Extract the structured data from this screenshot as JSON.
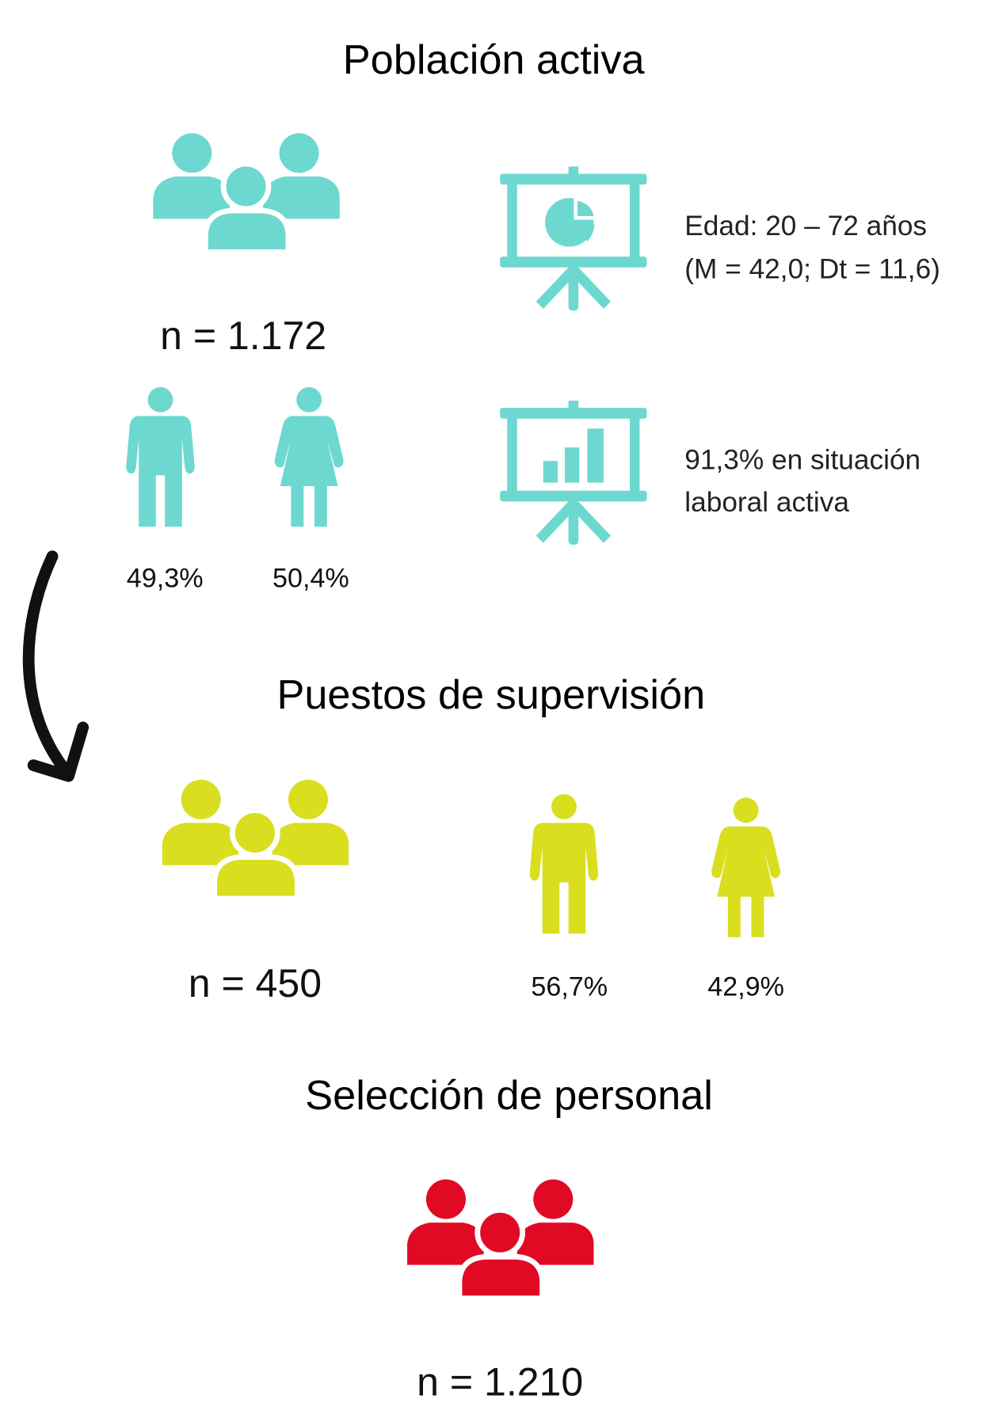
{
  "poblacion_activa": {
    "title": "Población activa",
    "n": "n = 1.172",
    "men": "49,3%",
    "women": "50,4%",
    "age": [
      "Edad: 20 – 72 años",
      "(M = 42,0; Dt = 11,6)"
    ],
    "employment": [
      "91,3% en situación",
      "laboral activa"
    ]
  },
  "supervision": {
    "title": "Puestos de supervisión",
    "n": "n = 450",
    "men": "56,7%",
    "women": "42,9%"
  },
  "seleccion": {
    "title": "Selección de personal",
    "n": "n = 1.210"
  }
}
